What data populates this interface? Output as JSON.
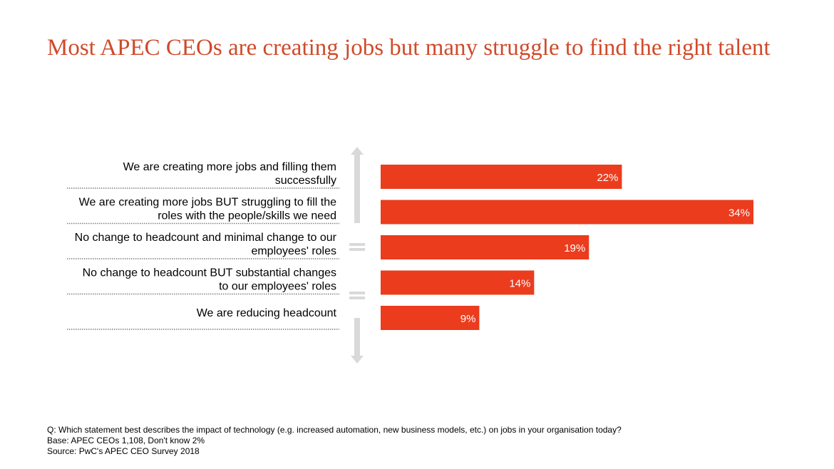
{
  "title": "Most APEC CEOs are creating jobs but many struggle to find the right talent",
  "colors": {
    "title": "#D04A2A",
    "bar": "#EB3C1E",
    "indicator": "#D9D9D9",
    "divider": "#7F7F7F"
  },
  "chart_data": {
    "type": "bar",
    "orientation": "horizontal",
    "categories": [
      [
        "We are creating more jobs and filling them",
        "successfully"
      ],
      [
        "We are creating more jobs BUT struggling to fill the",
        "roles with the people/skills we need"
      ],
      [
        "No change to headcount and minimal change to our",
        "employees' roles"
      ],
      [
        "No change to headcount BUT substantial changes",
        "to our employees' roles"
      ],
      [
        "We are reducing headcount"
      ]
    ],
    "values": [
      22,
      34,
      19,
      14,
      9
    ],
    "data_labels": [
      "22%",
      "34%",
      "19%",
      "14%",
      "9%"
    ],
    "unit": "%",
    "xlim": [
      0,
      34
    ]
  },
  "footnotes": {
    "question": "Q: Which statement best describes the impact of technology (e.g. increased automation, new business models, etc.) on jobs in  your organisation today?",
    "base": "Base: APEC CEOs 1,108, Don't know 2%",
    "source": "Source: PwC's APEC CEO Survey 2018"
  }
}
